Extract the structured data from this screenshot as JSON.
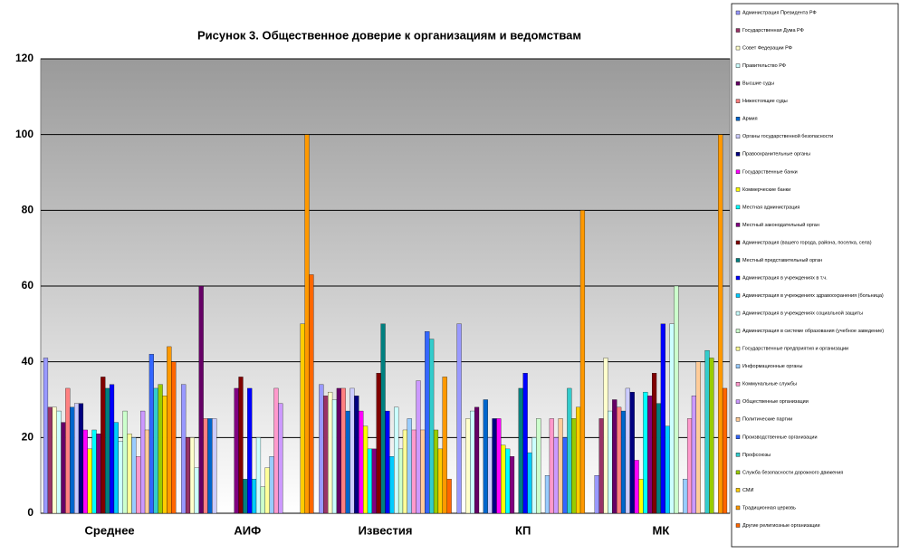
{
  "chart_data": {
    "type": "bar",
    "title": "Рисунок 3. Общественное доверие к организациям и ведомствам",
    "categories": [
      "Среднее",
      "АИФ",
      "Известия",
      "КП",
      "МК"
    ],
    "ylim": [
      0,
      120
    ],
    "yticks": [
      0,
      20,
      40,
      60,
      80,
      100,
      120
    ],
    "grid": true,
    "legend": "right",
    "series": [
      {
        "name": "Администрация Президента РФ",
        "color": "#9999ff",
        "values": [
          41,
          34,
          34,
          50,
          10
        ]
      },
      {
        "name": "Государственная Дума РФ",
        "color": "#993366",
        "values": [
          28,
          20,
          31,
          null,
          25
        ]
      },
      {
        "name": "Совет Федерации РФ",
        "color": "#ffffcc",
        "values": [
          28,
          20,
          32,
          25,
          41
        ]
      },
      {
        "name": "Правительство РФ",
        "color": "#ccffff",
        "values": [
          27,
          12,
          30,
          27,
          27
        ]
      },
      {
        "name": "Высшие суды",
        "color": "#660066",
        "values": [
          24,
          60,
          33,
          28,
          30
        ]
      },
      {
        "name": "Нижестоящие суды",
        "color": "#ff8080",
        "values": [
          33,
          25,
          33,
          null,
          28
        ]
      },
      {
        "name": "Армия",
        "color": "#0066cc",
        "values": [
          28,
          25,
          27,
          30,
          27
        ]
      },
      {
        "name": "Органы государственной безопасности",
        "color": "#ccccff",
        "values": [
          29,
          25,
          33,
          20,
          33
        ]
      },
      {
        "name": "Правоохранительные органы",
        "color": "#000080",
        "values": [
          29,
          null,
          31,
          25,
          32
        ]
      },
      {
        "name": "Государственные банки",
        "color": "#ff00ff",
        "values": [
          22,
          null,
          27,
          25,
          14
        ]
      },
      {
        "name": "Коммерческие банки",
        "color": "#ffff00",
        "values": [
          17,
          null,
          23,
          18,
          9
        ]
      },
      {
        "name": "Местная администрация",
        "color": "#00ffff",
        "values": [
          22,
          null,
          17,
          17,
          32
        ]
      },
      {
        "name": "Местный законодательный орган",
        "color": "#800080",
        "values": [
          21,
          33,
          17,
          15,
          31
        ]
      },
      {
        "name": "Администрация (вашего города, района, поселка, села)",
        "color": "#800000",
        "values": [
          36,
          36,
          37,
          null,
          37
        ]
      },
      {
        "name": "Местный представительный орган",
        "color": "#008080",
        "values": [
          33,
          9,
          50,
          33,
          29
        ]
      },
      {
        "name": "Администрация в учреждениях в т.ч.",
        "color": "#0000ff",
        "values": [
          34,
          33,
          27,
          37,
          50
        ]
      },
      {
        "name": "Администрация в учреждениях здравоохранения (больница)",
        "color": "#00ccff",
        "values": [
          24,
          9,
          15,
          16,
          23
        ]
      },
      {
        "name": "Администрация в учреждениях социальной защиты",
        "color": "#ccffff",
        "values": [
          19,
          20,
          28,
          20,
          50
        ]
      },
      {
        "name": "Администрация в системе образования (учебное заведение)",
        "color": "#ccffcc",
        "values": [
          27,
          7,
          17,
          25,
          60
        ]
      },
      {
        "name": "Государственные предприятия и организации",
        "color": "#ffff99",
        "values": [
          21,
          12,
          22,
          null,
          null
        ]
      },
      {
        "name": "Информационные органы",
        "color": "#99ccff",
        "values": [
          20,
          15,
          25,
          10,
          9
        ]
      },
      {
        "name": "Коммунальные службы",
        "color": "#ff99cc",
        "values": [
          15,
          33,
          22,
          25,
          25
        ]
      },
      {
        "name": "Общественные организации",
        "color": "#cc99ff",
        "values": [
          27,
          29,
          35,
          20,
          31
        ]
      },
      {
        "name": "Политические партии",
        "color": "#ffcc99",
        "values": [
          22,
          null,
          22,
          25,
          40
        ]
      },
      {
        "name": "Производственные организации",
        "color": "#3366ff",
        "values": [
          42,
          null,
          48,
          20,
          null
        ]
      },
      {
        "name": "Профсоюзы",
        "color": "#33cccc",
        "values": [
          33,
          null,
          46,
          33,
          43
        ]
      },
      {
        "name": "Служба безопасности дорожного движения",
        "color": "#99cc00",
        "values": [
          34,
          null,
          22,
          25,
          41
        ]
      },
      {
        "name": "СМИ",
        "color": "#ffcc00",
        "values": [
          31,
          50,
          17,
          28,
          null
        ]
      },
      {
        "name": "Традиционная церковь",
        "color": "#ff9900",
        "values": [
          44,
          100,
          36,
          80,
          100
        ]
      },
      {
        "name": "Другие религиозные организации",
        "color": "#ff6600",
        "values": [
          40,
          63,
          9,
          null,
          33
        ]
      }
    ]
  }
}
